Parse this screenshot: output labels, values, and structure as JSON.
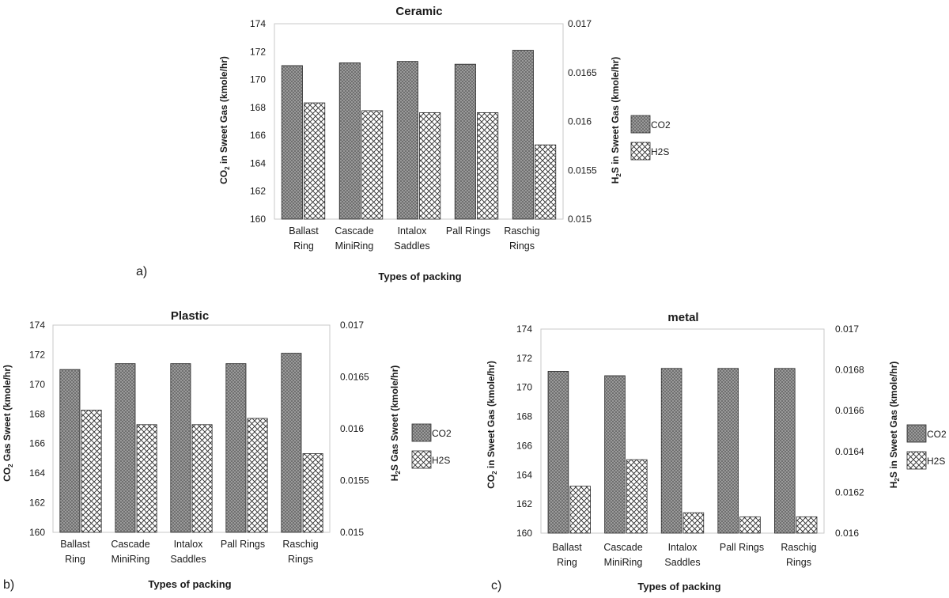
{
  "colors": {
    "co2_fill": "#6e6e6e",
    "h2s_fill": "#ffffff",
    "stroke": "#2b2b2b",
    "text": "#1a1a1a"
  },
  "chart_data": [
    {
      "id": "ceramic",
      "panel_label": "a)",
      "type": "bar",
      "title": "Ceramic",
      "xlabel": "Types of packing",
      "ylabel_left": [
        "CO",
        "2",
        " in Sweet Gas  (kmole/hr)"
      ],
      "ylabel_right": [
        "H",
        "2",
        "S  in Sweet Gas  (kmole/hr)"
      ],
      "categories": [
        [
          "Ballast",
          "Ring"
        ],
        [
          "Cascade",
          "MiniRing"
        ],
        [
          "Intalox",
          "Saddles"
        ],
        [
          "Pall Rings"
        ],
        [
          "Raschig",
          "Rings"
        ]
      ],
      "ylim_left": [
        160,
        174
      ],
      "yticks_left": [
        "160",
        "162",
        "164",
        "166",
        "168",
        "170",
        "172",
        "174"
      ],
      "ylim_right": [
        0.015,
        0.017
      ],
      "yticks_right": [
        "0.015",
        "0.0155",
        "0.016",
        "0.0165",
        "0.017"
      ],
      "series": [
        {
          "name": "CO2",
          "axis": "left",
          "values": [
            171.0,
            171.2,
            171.3,
            171.1,
            172.1
          ]
        },
        {
          "name": "H2S",
          "axis": "right",
          "values": [
            0.01619,
            0.01611,
            0.01609,
            0.01609,
            0.01576
          ]
        }
      ]
    },
    {
      "id": "plastic",
      "panel_label": "b)",
      "type": "bar",
      "title": "Plastic",
      "xlabel": "Types of packing",
      "ylabel_left": [
        "CO",
        "2",
        " Gas Sweet  (kmole/hr)"
      ],
      "ylabel_right": [
        "H",
        "2",
        "S Gas  Sweet  (kmole/hr)"
      ],
      "categories": [
        [
          "Ballast",
          "Ring"
        ],
        [
          "Cascade",
          "MiniRing"
        ],
        [
          "Intalox",
          "Saddles"
        ],
        [
          "Pall Rings"
        ],
        [
          "Raschig",
          "Rings"
        ]
      ],
      "ylim_left": [
        160,
        174
      ],
      "yticks_left": [
        "160",
        "162",
        "164",
        "166",
        "168",
        "170",
        "172",
        "174"
      ],
      "ylim_right": [
        0.015,
        0.017
      ],
      "yticks_right": [
        "0.015",
        "0.0155",
        "0.016",
        "0.0165",
        "0.017"
      ],
      "series": [
        {
          "name": "CO2",
          "axis": "left",
          "values": [
            171.0,
            171.4,
            171.4,
            171.4,
            172.1
          ]
        },
        {
          "name": "H2S",
          "axis": "right",
          "values": [
            0.01618,
            0.01604,
            0.01604,
            0.0161,
            0.01576
          ]
        }
      ]
    },
    {
      "id": "metal",
      "panel_label": "c)",
      "type": "bar",
      "title": "metal",
      "xlabel": "Types of packing",
      "ylabel_left": [
        "CO",
        "2",
        " in Sweet Gas  (kmole/hr)"
      ],
      "ylabel_right": [
        "H",
        "2",
        "S  in Sweet Gas  (kmole/hr)"
      ],
      "categories": [
        [
          "Ballast",
          "Ring"
        ],
        [
          "Cascade",
          "MiniRing"
        ],
        [
          "Intalox",
          "Saddles"
        ],
        [
          "Pall Rings"
        ],
        [
          "Raschig",
          "Rings"
        ]
      ],
      "ylim_left": [
        160,
        174
      ],
      "yticks_left": [
        "160",
        "162",
        "164",
        "166",
        "168",
        "170",
        "172",
        "174"
      ],
      "ylim_right": [
        0.016,
        0.017
      ],
      "yticks_right": [
        "0.016",
        "0.0162",
        "0.0164",
        "0.0166",
        "0.0168",
        "0.017"
      ],
      "series": [
        {
          "name": "CO2",
          "axis": "left",
          "values": [
            171.1,
            170.8,
            171.3,
            171.3,
            171.3
          ]
        },
        {
          "name": "H2S",
          "axis": "right",
          "values": [
            0.01623,
            0.01636,
            0.0161,
            0.01608,
            0.01608
          ]
        }
      ]
    }
  ]
}
